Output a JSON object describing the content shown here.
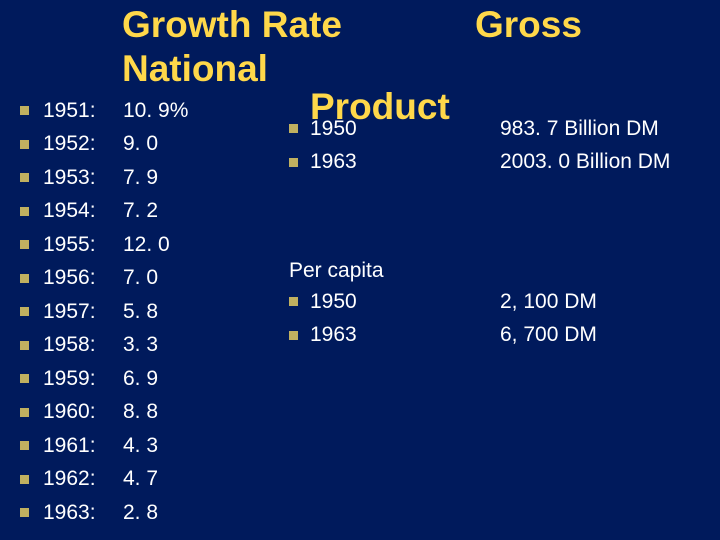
{
  "title": {
    "part1_line1": "Growth Rate",
    "part1_line2": "National",
    "part2": "Gross",
    "part3": "Product"
  },
  "growth_rates": [
    {
      "year": "1951:",
      "value": "10. 9%"
    },
    {
      "year": "1952:",
      "value": "9. 0"
    },
    {
      "year": "1953:",
      "value": "7. 9"
    },
    {
      "year": "1954:",
      "value": "7. 2"
    },
    {
      "year": "1955:",
      "value": "12. 0"
    },
    {
      "year": "1956:",
      "value": "7. 0"
    },
    {
      "year": "1957:",
      "value": "5. 8"
    },
    {
      "year": "1958:",
      "value": "3. 3"
    },
    {
      "year": "1959:",
      "value": "6. 9"
    },
    {
      "year": "1960:",
      "value": "8. 8"
    },
    {
      "year": "1961:",
      "value": "4. 3"
    },
    {
      "year": "1962:",
      "value": "4. 7"
    },
    {
      "year": "1963:",
      "value": "2. 8"
    }
  ],
  "gnp_total": [
    {
      "year": "1950",
      "value": "983. 7 Billion DM"
    },
    {
      "year": "1963",
      "value": "2003. 0 Billion DM"
    }
  ],
  "per_capita_label": "Per capita",
  "gnp_per_capita": [
    {
      "year": "1950",
      "value": "2, 100 DM"
    },
    {
      "year": "1963",
      "value": "6, 700 DM"
    }
  ],
  "style": {
    "background_color": "#001a5c",
    "title_color": "#ffd84a",
    "text_color": "#ffffff",
    "bullet_color": "#c0b060",
    "title_fontsize": 37,
    "body_fontsize": 21
  }
}
